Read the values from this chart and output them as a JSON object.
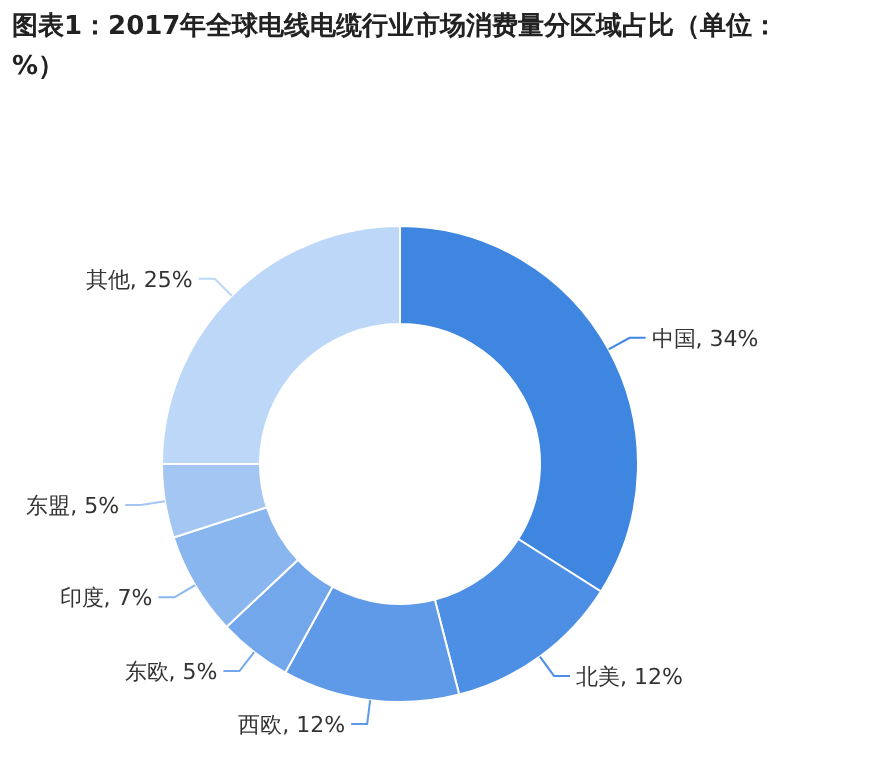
{
  "chart_data": {
    "type": "donut",
    "title": "图表1：2017年全球电线电缆行业市场消费量分区域占比（单位：%）",
    "categories": [
      "中国",
      "北美",
      "西欧",
      "东欧",
      "印度",
      "东盟",
      "其他"
    ],
    "values": [
      34,
      12,
      12,
      5,
      7,
      5,
      25
    ],
    "colors": [
      "#3f86e0",
      "#4c8fe4",
      "#5e9ae7",
      "#72a7eb",
      "#8ab6ef",
      "#a4c6f3",
      "#bdd7f8"
    ],
    "value_labels": [
      ", 34%",
      ", 12%",
      ", 12%",
      ", 5%",
      ", 7%",
      ", 5%",
      ", 25%"
    ]
  }
}
